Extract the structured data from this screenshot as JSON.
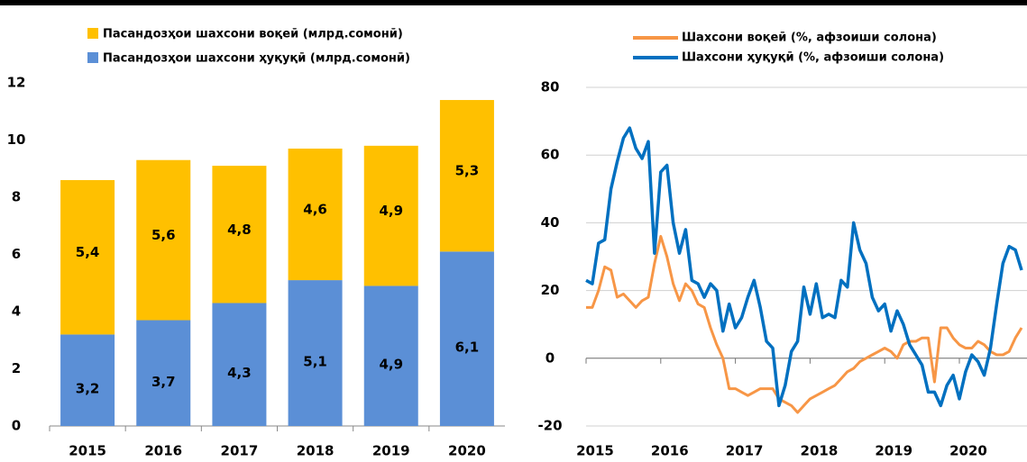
{
  "chart_data": [
    {
      "type": "stacked_bar",
      "categories": [
        "2015",
        "2016",
        "2017",
        "2018",
        "2019",
        "2020"
      ],
      "series": [
        {
          "name": "Пасандозҳои шахсони ҳуқуқӣ (млрд.сомонӣ)",
          "color": "#5b8fd6",
          "values": [
            3.2,
            3.7,
            4.3,
            5.1,
            4.9,
            6.1
          ],
          "value_labels": [
            "3,2",
            "3,7",
            "4,3",
            "5,1",
            "4,9",
            "6,1"
          ]
        },
        {
          "name": "Пасандозҳои шахсони воқеӣ (млрд.сомонӣ)",
          "color": "#ffc000",
          "values": [
            5.4,
            5.6,
            4.8,
            4.6,
            4.9,
            5.3
          ],
          "value_labels": [
            "5,4",
            "5,6",
            "4,8",
            "4,6",
            "4,9",
            "5,3"
          ]
        }
      ],
      "ylim": [
        0,
        12
      ],
      "yticks": [
        0,
        2,
        4,
        6,
        8,
        10,
        12
      ],
      "grid": false
    },
    {
      "type": "line",
      "categories": [
        "2015",
        null,
        null,
        null,
        null,
        null,
        null,
        null,
        null,
        null,
        null,
        null,
        "2016",
        null,
        null,
        null,
        null,
        null,
        null,
        null,
        null,
        null,
        null,
        null,
        "2017",
        null,
        null,
        null,
        null,
        null,
        null,
        null,
        null,
        null,
        null,
        null,
        "2018",
        null,
        null,
        null,
        null,
        null,
        null,
        null,
        null,
        null,
        null,
        null,
        "2019",
        null,
        null,
        null,
        null,
        null,
        null,
        null,
        null,
        null,
        null,
        null,
        "2020",
        null,
        null,
        null,
        null,
        null,
        null,
        null,
        null,
        null,
        null
      ],
      "series": [
        {
          "name": "Шахсони воқеӣ (%, афзоиши солона)",
          "color": "#f79646",
          "values": [
            15,
            15,
            20,
            27,
            26,
            18,
            19,
            17,
            15,
            17,
            18,
            28,
            36,
            30,
            22,
            17,
            22,
            20,
            16,
            15,
            9,
            4,
            0,
            -9,
            -9,
            -10,
            -11,
            -10,
            -9,
            -9,
            -9,
            -12,
            -13,
            -14,
            -16,
            -14,
            -12,
            -11,
            -10,
            -9,
            -8,
            -6,
            -4,
            -3,
            -1,
            0,
            1,
            2,
            3,
            2,
            0,
            4,
            5,
            5,
            6,
            6,
            -7,
            9,
            9,
            6,
            4,
            3,
            3,
            5,
            4,
            2,
            1,
            1,
            2,
            6,
            9
          ]
        },
        {
          "name": "Шахсони ҳуқуқӣ (%, афзоиши солона)",
          "color": "#0070c0",
          "values": [
            23,
            22,
            34,
            35,
            50,
            58,
            65,
            68,
            62,
            59,
            64,
            31,
            55,
            57,
            40,
            31,
            38,
            23,
            22,
            18,
            22,
            20,
            8,
            16,
            9,
            12,
            18,
            23,
            15,
            5,
            3,
            -14,
            -8,
            2,
            5,
            21,
            13,
            22,
            12,
            13,
            12,
            23,
            21,
            40,
            32,
            28,
            18,
            14,
            16,
            8,
            14,
            10,
            4,
            1,
            -2,
            -10,
            -10,
            -14,
            -8,
            -5,
            -12,
            -4,
            1,
            -1,
            -5,
            3,
            16,
            28,
            33,
            32,
            26
          ]
        }
      ],
      "ylim": [
        -20,
        80
      ],
      "yticks": [
        -20,
        0,
        20,
        40,
        60,
        80
      ],
      "grid": true
    }
  ]
}
